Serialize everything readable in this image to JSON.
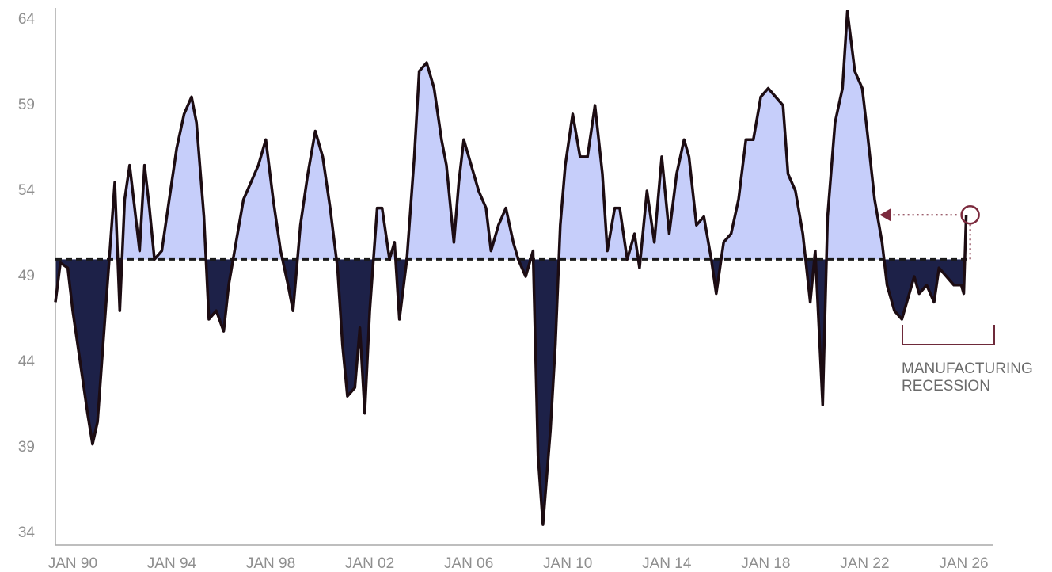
{
  "chart_data": {
    "type": "line",
    "x": [
      1989.3,
      1989.5,
      1989.8,
      1990.0,
      1990.3,
      1990.6,
      1990.8,
      1991.0,
      1991.2,
      1991.5,
      1991.7,
      1991.9,
      1992.1,
      1992.3,
      1992.5,
      1992.7,
      1992.9,
      1993.1,
      1993.3,
      1993.6,
      1993.9,
      1994.2,
      1994.5,
      1994.8,
      1995.0,
      1995.3,
      1995.5,
      1995.8,
      1996.1,
      1996.3,
      1996.6,
      1996.9,
      1997.2,
      1997.5,
      1997.8,
      1998.1,
      1998.4,
      1998.7,
      1998.9,
      1999.2,
      1999.5,
      1999.8,
      2000.1,
      2000.4,
      2000.7,
      2000.9,
      2001.1,
      2001.4,
      2001.6,
      2001.8,
      2002.0,
      2002.3,
      2002.5,
      2002.8,
      2003.0,
      2003.2,
      2003.5,
      2003.8,
      2004.0,
      2004.3,
      2004.6,
      2004.9,
      2005.1,
      2005.4,
      2005.6,
      2005.8,
      2006.1,
      2006.4,
      2006.7,
      2006.9,
      2007.2,
      2007.5,
      2007.8,
      2008.0,
      2008.3,
      2008.6,
      2008.8,
      2009.0,
      2009.3,
      2009.5,
      2009.7,
      2009.9,
      2010.2,
      2010.5,
      2010.8,
      2011.1,
      2011.4,
      2011.6,
      2011.9,
      2012.1,
      2012.4,
      2012.7,
      2012.9,
      2013.2,
      2013.5,
      2013.8,
      2014.1,
      2014.4,
      2014.7,
      2014.9,
      2015.2,
      2015.5,
      2015.8,
      2016.0,
      2016.3,
      2016.6,
      2016.9,
      2017.2,
      2017.5,
      2017.8,
      2018.1,
      2018.4,
      2018.7,
      2018.9,
      2019.2,
      2019.5,
      2019.8,
      2020.0,
      2020.3,
      2020.5,
      2020.8,
      2021.1,
      2021.3,
      2021.6,
      2021.9,
      2022.1,
      2022.4,
      2022.7,
      2022.9,
      2023.2,
      2023.5,
      2023.8,
      2024.0,
      2024.2,
      2024.5,
      2024.8,
      2025.0,
      2025.3,
      2025.6,
      2025.9,
      2026.0,
      2026.1
    ],
    "series": [
      {
        "color": "#1c0c12",
        "values": [
          47.5,
          49.8,
          49.5,
          47,
          44,
          41,
          39.2,
          40.5,
          44.5,
          50.5,
          54.5,
          47,
          53.5,
          55.5,
          53,
          50.5,
          55.5,
          53,
          50,
          50.5,
          53.5,
          56.5,
          58.5,
          59.5,
          58,
          52.5,
          46.5,
          47,
          45.8,
          48.5,
          51,
          53.5,
          54.5,
          55.5,
          57,
          53.5,
          50.5,
          48.5,
          47,
          52,
          55,
          57.5,
          56,
          53,
          49.5,
          45,
          42,
          42.5,
          46,
          41,
          47,
          53,
          53,
          50,
          51,
          46.5,
          50,
          56,
          61,
          61.5,
          60,
          57,
          55.5,
          51,
          54.5,
          57,
          55.5,
          54,
          53,
          50.5,
          52,
          53,
          51,
          50,
          49,
          50.5,
          38.5,
          34.5,
          40,
          45,
          52,
          55.5,
          58.5,
          56,
          56,
          59,
          55,
          50.5,
          53,
          53,
          50,
          51.5,
          49.5,
          54,
          51,
          56,
          51.5,
          55,
          57,
          56,
          52,
          52.5,
          50,
          48,
          51,
          51.5,
          53.5,
          57,
          57,
          59.5,
          60,
          59.5,
          59,
          55,
          54,
          51.5,
          47.5,
          50.5,
          41.5,
          52.5,
          58,
          60,
          64.5,
          61,
          60,
          57.5,
          53.5,
          51,
          48.5,
          47,
          46.5,
          48,
          49,
          48,
          48.5,
          47.5,
          49.5,
          49,
          48.5,
          48.5,
          48,
          52.6
        ]
      }
    ],
    "reference_line": 50,
    "above_color": "#c6cefa",
    "below_color": "#1d2148",
    "annotation_color": "#7b2a3d",
    "annotation": [
      "MANUFACTURING",
      "RECESSION"
    ],
    "xlim": [
      1989.3,
      2027.2
    ],
    "xticks": [
      {
        "value": 1990,
        "label": "JAN 90"
      },
      {
        "value": 1994,
        "label": "JAN 94"
      },
      {
        "value": 1998,
        "label": "JAN 98"
      },
      {
        "value": 2002,
        "label": "JAN 02"
      },
      {
        "value": 2006,
        "label": "JAN 06"
      },
      {
        "value": 2010,
        "label": "JAN 10"
      },
      {
        "value": 2014,
        "label": "JAN 14"
      },
      {
        "value": 2018,
        "label": "JAN 18"
      },
      {
        "value": 2022,
        "label": "JAN 22"
      },
      {
        "value": 2026,
        "label": "JAN 26"
      }
    ],
    "ylim": [
      33.3,
      64.7
    ],
    "yticks": [
      34,
      39,
      44,
      49,
      54,
      59,
      64
    ]
  }
}
